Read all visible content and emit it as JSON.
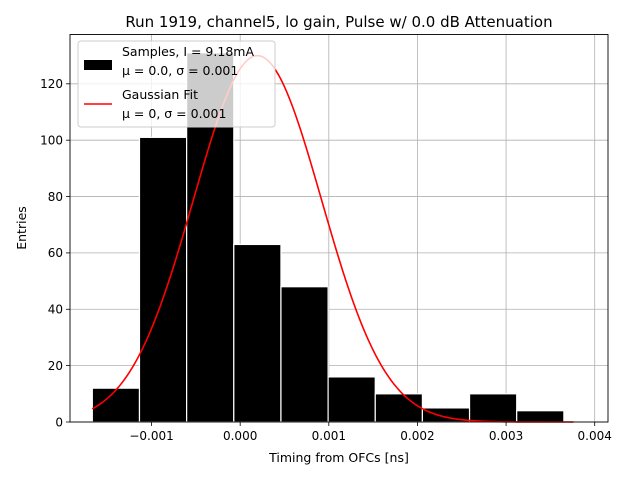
{
  "chart_data": {
    "type": "bar",
    "title": "Run 1919, channel5, lo gain, Pulse w/ 0.0 dB Attenuation",
    "xlabel": "Timing from OFCs [ns]",
    "ylabel": "Entries",
    "xlim": [
      -0.00192,
      0.00415
    ],
    "ylim": [
      0,
      137.5
    ],
    "grid": true,
    "x_ticks": [
      {
        "value": -0.001,
        "label": "−0.001"
      },
      {
        "value": 0.0,
        "label": "0.000"
      },
      {
        "value": 0.001,
        "label": "0.001"
      },
      {
        "value": 0.002,
        "label": "0.002"
      },
      {
        "value": 0.003,
        "label": "0.003"
      },
      {
        "value": 0.004,
        "label": "0.004"
      }
    ],
    "y_ticks": [
      {
        "value": 0,
        "label": "0"
      },
      {
        "value": 20,
        "label": "20"
      },
      {
        "value": 40,
        "label": "40"
      },
      {
        "value": 60,
        "label": "60"
      },
      {
        "value": 80,
        "label": "80"
      },
      {
        "value": 100,
        "label": "100"
      },
      {
        "value": 120,
        "label": "120"
      }
    ],
    "histogram": {
      "name": "Samples, I = 9.18mA",
      "color": "#000000",
      "edge_color": "#ffffff",
      "bins": [
        {
          "x0": -0.001668,
          "x1": -0.001136,
          "count": 12
        },
        {
          "x0": -0.001136,
          "x1": -0.000604,
          "count": 101
        },
        {
          "x0": -0.000604,
          "x1": -7.2e-05,
          "count": 131
        },
        {
          "x0": -7.2e-05,
          "x1": 0.00046,
          "count": 63
        },
        {
          "x0": 0.00046,
          "x1": 0.000992,
          "count": 48
        },
        {
          "x0": 0.000992,
          "x1": 0.001524,
          "count": 16
        },
        {
          "x0": 0.001524,
          "x1": 0.002056,
          "count": 10
        },
        {
          "x0": 0.002056,
          "x1": 0.002588,
          "count": 5
        },
        {
          "x0": 0.002588,
          "x1": 0.00312,
          "count": 10
        },
        {
          "x0": 0.00312,
          "x1": 0.003652,
          "count": 4
        }
      ]
    },
    "fit": {
      "name": "Gaussian Fit",
      "color": "#ff0000",
      "amplitude": 130,
      "mean": 0.000195,
      "sigma": 0.000723,
      "x_range": [
        -0.00167,
        0.00376
      ]
    },
    "legend": {
      "position": "top-left",
      "entries": [
        {
          "kind": "patch",
          "line1": "Samples, I = 9.18mA",
          "line2": "μ = 0.0, σ = 0.001",
          "color": "#000000"
        },
        {
          "kind": "line",
          "line1": "Gaussian Fit",
          "line2": "μ = 0, σ = 0.001",
          "color": "#ff0000"
        }
      ]
    }
  }
}
